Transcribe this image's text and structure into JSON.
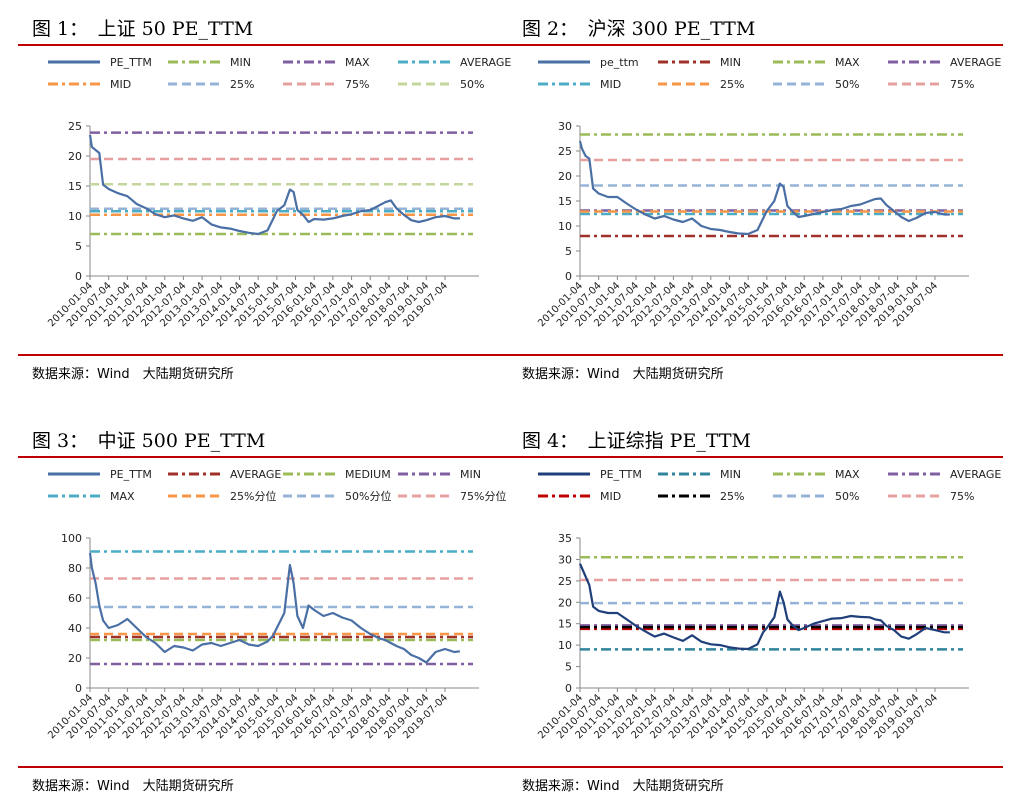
{
  "source_label": "数据来源：Wind　大陆期货研究所",
  "chart_data": [
    {
      "type": "line",
      "title": "图 1：　上证 50 PE_TTM",
      "ylim": [
        0,
        25
      ],
      "yticks": [
        0,
        5,
        10,
        15,
        20,
        25
      ],
      "x_tick_labels": [
        "2010-01-04",
        "2010-07-04",
        "2011-01-04",
        "2011-07-04",
        "2012-01-04",
        "2012-07-04",
        "2013-01-04",
        "2013-07-04",
        "2014-01-04",
        "2014-07-04",
        "2015-01-04",
        "2015-07-04",
        "2016-01-04",
        "2016-07-04",
        "2017-01-04",
        "2017-07-04",
        "2018-01-04",
        "2018-07-04",
        "2019-01-04",
        "2019-07-04"
      ],
      "legend": [
        {
          "name": "PE_TTM",
          "color": "#4a6fa5",
          "dash": "solid"
        },
        {
          "name": "MIN",
          "color": "#9bbb59",
          "dash": "dashdot"
        },
        {
          "name": "MAX",
          "color": "#7f5fa0",
          "dash": "dashdot"
        },
        {
          "name": "AVERAGE",
          "color": "#4bacc6",
          "dash": "dashdot"
        },
        {
          "name": "MID",
          "color": "#f79646",
          "dash": "dashdot"
        },
        {
          "name": "25%",
          "color": "#95b3d7",
          "dash": "dash"
        },
        {
          "name": "75%",
          "color": "#e6a0a0",
          "dash": "dash"
        },
        {
          "name": "50%",
          "color": "#c3d69b",
          "dash": "dash"
        }
      ],
      "reference_lines": [
        {
          "name": "MIN",
          "value": 7.0,
          "color": "#9bbb59",
          "dash": "dashdot"
        },
        {
          "name": "MAX",
          "value": 23.9,
          "color": "#7f5fa0",
          "dash": "dashdot"
        },
        {
          "name": "AVERAGE",
          "value": 10.8,
          "color": "#4bacc6",
          "dash": "dashdot"
        },
        {
          "name": "MID",
          "value": 10.2,
          "color": "#f79646",
          "dash": "dashdot"
        },
        {
          "name": "25%",
          "value": 11.2,
          "color": "#95b3d7",
          "dash": "dash"
        },
        {
          "name": "75%",
          "value": 19.5,
          "color": "#e6a0a0",
          "dash": "dash"
        },
        {
          "name": "50%",
          "value": 15.3,
          "color": "#c3d69b",
          "dash": "dash"
        }
      ],
      "series": [
        {
          "name": "PE_TTM",
          "color": "#4a6fa5",
          "x": [
            2010.0,
            2010.05,
            2010.15,
            2010.25,
            2010.35,
            2010.5,
            2010.75,
            2011.0,
            2011.25,
            2011.5,
            2011.75,
            2012.0,
            2012.25,
            2012.5,
            2012.75,
            2013.0,
            2013.25,
            2013.5,
            2013.75,
            2014.0,
            2014.25,
            2014.5,
            2014.75,
            2014.9,
            2015.0,
            2015.2,
            2015.35,
            2015.45,
            2015.55,
            2015.7,
            2015.85,
            2016.0,
            2016.25,
            2016.5,
            2016.75,
            2017.0,
            2017.25,
            2017.5,
            2017.75,
            2017.9,
            2018.05,
            2018.2,
            2018.4,
            2018.6,
            2018.8,
            2019.0,
            2019.25,
            2019.5,
            2019.75,
            2019.9
          ],
          "y": [
            23.5,
            21.5,
            21.0,
            20.5,
            15.2,
            14.5,
            13.8,
            13.3,
            12.0,
            11.3,
            10.3,
            9.8,
            10.1,
            9.6,
            9.2,
            9.8,
            8.6,
            8.1,
            7.9,
            7.5,
            7.2,
            7.0,
            7.6,
            9.5,
            10.8,
            11.8,
            14.4,
            14.0,
            11.0,
            10.2,
            9.0,
            9.5,
            9.4,
            9.6,
            10.0,
            10.3,
            10.8,
            11.0,
            11.8,
            12.3,
            12.6,
            11.3,
            10.2,
            9.3,
            9.0,
            9.3,
            9.8,
            10.0,
            9.6,
            9.6
          ]
        }
      ]
    },
    {
      "type": "line",
      "title": "图 2：　沪深 300 PE_TTM",
      "ylim": [
        0,
        30
      ],
      "yticks": [
        0,
        5,
        10,
        15,
        20,
        25,
        30
      ],
      "x_tick_labels": [
        "2010-01-04",
        "2010-07-04",
        "2011-01-04",
        "2011-07-04",
        "2012-01-04",
        "2012-07-04",
        "2013-01-04",
        "2013-07-04",
        "2014-01-04",
        "2014-07-04",
        "2015-01-04",
        "2015-07-04",
        "2016-01-04",
        "2016-07-04",
        "2017-01-04",
        "2017-07-04",
        "2018-01-04",
        "2018-07-04",
        "2019-01-04",
        "2019-07-04"
      ],
      "legend": [
        {
          "name": "pe_ttm",
          "color": "#4a6fa5",
          "dash": "solid"
        },
        {
          "name": "MIN",
          "color": "#a0302a",
          "dash": "dashdot"
        },
        {
          "name": "MAX",
          "color": "#9bbb59",
          "dash": "dashdot"
        },
        {
          "name": "AVERAGE",
          "color": "#7f5fa0",
          "dash": "dashdot"
        },
        {
          "name": "MID",
          "color": "#4bacc6",
          "dash": "dashdot"
        },
        {
          "name": "25%",
          "color": "#f79646",
          "dash": "dash"
        },
        {
          "name": "50%",
          "color": "#95b3d7",
          "dash": "dash"
        },
        {
          "name": "75%",
          "color": "#e6a0a0",
          "dash": "dash"
        }
      ],
      "reference_lines": [
        {
          "name": "MIN",
          "value": 8.0,
          "color": "#a0302a",
          "dash": "dashdot"
        },
        {
          "name": "MAX",
          "value": 28.3,
          "color": "#9bbb59",
          "dash": "dashdot"
        },
        {
          "name": "AVERAGE",
          "value": 13.1,
          "color": "#7f5fa0",
          "dash": "dashdot"
        },
        {
          "name": "MID",
          "value": 12.4,
          "color": "#4bacc6",
          "dash": "dashdot"
        },
        {
          "name": "25%",
          "value": 12.9,
          "color": "#f79646",
          "dash": "dash"
        },
        {
          "name": "50%",
          "value": 18.1,
          "color": "#95b3d7",
          "dash": "dash"
        },
        {
          "name": "75%",
          "value": 23.2,
          "color": "#e6a0a0",
          "dash": "dash"
        }
      ],
      "series": [
        {
          "name": "pe_ttm",
          "color": "#4a6fa5",
          "x": [
            2010.0,
            2010.05,
            2010.15,
            2010.25,
            2010.35,
            2010.5,
            2010.75,
            2011.0,
            2011.25,
            2011.5,
            2011.75,
            2012.0,
            2012.25,
            2012.5,
            2012.75,
            2013.0,
            2013.25,
            2013.5,
            2013.75,
            2014.0,
            2014.25,
            2014.5,
            2014.75,
            2014.9,
            2015.0,
            2015.2,
            2015.35,
            2015.45,
            2015.55,
            2015.7,
            2015.85,
            2016.0,
            2016.25,
            2016.5,
            2016.75,
            2017.0,
            2017.25,
            2017.5,
            2017.75,
            2017.9,
            2018.05,
            2018.2,
            2018.4,
            2018.6,
            2018.8,
            2019.0,
            2019.25,
            2019.5,
            2019.75,
            2019.9
          ],
          "y": [
            27.0,
            25.5,
            24.0,
            23.5,
            17.5,
            16.5,
            15.8,
            15.8,
            14.5,
            13.3,
            12.3,
            11.5,
            12.0,
            11.3,
            10.8,
            11.5,
            10.0,
            9.4,
            9.2,
            8.8,
            8.5,
            8.4,
            9.2,
            11.5,
            13.0,
            15.0,
            18.5,
            17.8,
            14.0,
            12.8,
            11.8,
            12.0,
            12.4,
            12.8,
            13.2,
            13.4,
            14.0,
            14.3,
            15.0,
            15.4,
            15.5,
            14.2,
            13.0,
            11.8,
            11.0,
            11.6,
            12.6,
            12.8,
            12.3,
            12.3
          ]
        }
      ]
    },
    {
      "type": "line",
      "title": "图 3：　中证 500 PE_TTM",
      "ylim": [
        0,
        100
      ],
      "yticks": [
        0,
        20,
        40,
        60,
        80,
        100
      ],
      "x_tick_labels": [
        "2010-01-04",
        "2010-07-04",
        "2011-01-04",
        "2011-07-04",
        "2012-01-04",
        "2012-07-04",
        "2013-01-04",
        "2013-07-04",
        "2014-01-04",
        "2014-07-04",
        "2015-01-04",
        "2015-07-04",
        "2016-01-04",
        "2016-07-04",
        "2017-01-04",
        "2017-07-04",
        "2018-01-04",
        "2018-07-04",
        "2019-01-04",
        "2019-07-04"
      ],
      "legend": [
        {
          "name": "PE_TTM",
          "color": "#4a6fa5",
          "dash": "solid"
        },
        {
          "name": "AVERAGE",
          "color": "#a0302a",
          "dash": "dashdot"
        },
        {
          "name": "MEDIUM",
          "color": "#9bbb59",
          "dash": "dashdot"
        },
        {
          "name": "MIN",
          "color": "#7f5fa0",
          "dash": "dashdot"
        },
        {
          "name": "MAX",
          "color": "#4bacc6",
          "dash": "dashdot"
        },
        {
          "name": "25%分位",
          "color": "#f79646",
          "dash": "dash"
        },
        {
          "name": "50%分位",
          "color": "#95b3d7",
          "dash": "dash"
        },
        {
          "name": "75%分位",
          "color": "#e6a0a0",
          "dash": "dash"
        }
      ],
      "reference_lines": [
        {
          "name": "AVERAGE",
          "value": 34.0,
          "color": "#a0302a",
          "dash": "dashdot"
        },
        {
          "name": "MEDIUM",
          "value": 32.0,
          "color": "#9bbb59",
          "dash": "dashdot"
        },
        {
          "name": "MIN",
          "value": 16.0,
          "color": "#7f5fa0",
          "dash": "dashdot"
        },
        {
          "name": "MAX",
          "value": 91.0,
          "color": "#4bacc6",
          "dash": "dashdot"
        },
        {
          "name": "25%分位",
          "value": 36.0,
          "color": "#f79646",
          "dash": "dash"
        },
        {
          "name": "50%分位",
          "value": 54.0,
          "color": "#95b3d7",
          "dash": "dash"
        },
        {
          "name": "75%分位",
          "value": 73.0,
          "color": "#e6a0a0",
          "dash": "dash"
        }
      ],
      "series": [
        {
          "name": "PE_TTM",
          "color": "#4a6fa5",
          "x": [
            2010.0,
            2010.05,
            2010.15,
            2010.25,
            2010.35,
            2010.5,
            2010.75,
            2011.0,
            2011.25,
            2011.5,
            2011.75,
            2012.0,
            2012.25,
            2012.5,
            2012.75,
            2013.0,
            2013.25,
            2013.5,
            2013.75,
            2014.0,
            2014.25,
            2014.5,
            2014.75,
            2014.9,
            2015.0,
            2015.2,
            2015.35,
            2015.45,
            2015.55,
            2015.7,
            2015.85,
            2016.0,
            2016.25,
            2016.5,
            2016.75,
            2017.0,
            2017.25,
            2017.5,
            2017.75,
            2017.9,
            2018.05,
            2018.2,
            2018.4,
            2018.6,
            2018.8,
            2019.0,
            2019.25,
            2019.5,
            2019.75,
            2019.9
          ],
          "y": [
            90.0,
            80.0,
            70.0,
            55.0,
            45.0,
            40.0,
            42.0,
            46.0,
            40.0,
            34.0,
            30.0,
            24.0,
            28.0,
            27.0,
            25.0,
            29.0,
            30.0,
            28.0,
            30.0,
            32.0,
            29.0,
            28.0,
            31.0,
            35.0,
            40.0,
            50.0,
            82.0,
            70.0,
            48.0,
            40.0,
            55.0,
            52.0,
            48.0,
            50.0,
            47.0,
            45.0,
            40.0,
            36.0,
            33.0,
            32.0,
            30.0,
            28.0,
            26.0,
            22.0,
            20.0,
            17.0,
            24.0,
            26.0,
            24.0,
            24.5
          ]
        }
      ]
    },
    {
      "type": "line",
      "title": "图 4：　上证综指 PE_TTM",
      "ylim": [
        0,
        35
      ],
      "yticks": [
        0,
        5,
        10,
        15,
        20,
        25,
        30,
        35
      ],
      "x_tick_labels": [
        "2010-01-04",
        "2010-07-04",
        "2011-01-04",
        "2011-07-04",
        "2012-01-04",
        "2012-07-04",
        "2013-01-04",
        "2013-07-04",
        "2014-01-04",
        "2014-07-04",
        "2015-01-04",
        "2015-07-04",
        "2016-01-04",
        "2016-07-04",
        "2017-01-04",
        "2017-07-04",
        "2018-01-04",
        "2018-07-04",
        "2019-01-04",
        "2019-07-04"
      ],
      "legend": [
        {
          "name": "PE_TTM",
          "color": "#1f3f7a",
          "dash": "solid"
        },
        {
          "name": "MIN",
          "color": "#31849b",
          "dash": "dashdot"
        },
        {
          "name": "MAX",
          "color": "#9bbb59",
          "dash": "dashdot"
        },
        {
          "name": "AVERAGE",
          "color": "#7f5fa0",
          "dash": "dashdot"
        },
        {
          "name": "MID",
          "color": "#c00000",
          "dash": "dashdot"
        },
        {
          "name": "25%",
          "color": "#000000",
          "dash": "dashdot"
        },
        {
          "name": "50%",
          "color": "#95b3d7",
          "dash": "dash"
        },
        {
          "name": "75%",
          "color": "#e6a0a0",
          "dash": "dash"
        }
      ],
      "reference_lines": [
        {
          "name": "MIN",
          "value": 9.0,
          "color": "#31849b",
          "dash": "dashdot"
        },
        {
          "name": "MAX",
          "value": 30.5,
          "color": "#9bbb59",
          "dash": "dashdot"
        },
        {
          "name": "AVERAGE",
          "value": 14.6,
          "color": "#7f5fa0",
          "dash": "dashdot"
        },
        {
          "name": "MID",
          "value": 13.8,
          "color": "#c00000",
          "dash": "dashdot"
        },
        {
          "name": "25%",
          "value": 14.2,
          "color": "#000000",
          "dash": "dashdot"
        },
        {
          "name": "50%",
          "value": 19.8,
          "color": "#95b3d7",
          "dash": "dash"
        },
        {
          "name": "75%",
          "value": 25.2,
          "color": "#e6a0a0",
          "dash": "dash"
        }
      ],
      "series": [
        {
          "name": "PE_TTM",
          "color": "#1f3f7a",
          "x": [
            2010.0,
            2010.05,
            2010.15,
            2010.25,
            2010.35,
            2010.5,
            2010.75,
            2011.0,
            2011.25,
            2011.5,
            2011.75,
            2012.0,
            2012.25,
            2012.5,
            2012.75,
            2013.0,
            2013.25,
            2013.5,
            2013.75,
            2014.0,
            2014.25,
            2014.5,
            2014.75,
            2014.9,
            2015.0,
            2015.2,
            2015.35,
            2015.45,
            2015.55,
            2015.7,
            2015.85,
            2016.0,
            2016.25,
            2016.5,
            2016.75,
            2017.0,
            2017.25,
            2017.5,
            2017.75,
            2017.9,
            2018.05,
            2018.2,
            2018.4,
            2018.6,
            2018.8,
            2019.0,
            2019.25,
            2019.5,
            2019.75,
            2019.9
          ],
          "y": [
            29.0,
            28.0,
            26.0,
            24.0,
            19.0,
            18.0,
            17.5,
            17.5,
            16.0,
            14.5,
            13.2,
            12.0,
            12.7,
            11.8,
            11.0,
            12.3,
            10.8,
            10.2,
            10.0,
            9.5,
            9.2,
            9.1,
            10.2,
            13.0,
            14.0,
            16.5,
            22.5,
            20.0,
            16.0,
            14.5,
            13.5,
            14.0,
            15.0,
            15.6,
            16.2,
            16.3,
            16.8,
            16.6,
            16.5,
            16.0,
            15.8,
            14.5,
            13.5,
            12.0,
            11.5,
            12.5,
            14.0,
            13.5,
            13.0,
            13.0
          ]
        }
      ]
    }
  ]
}
